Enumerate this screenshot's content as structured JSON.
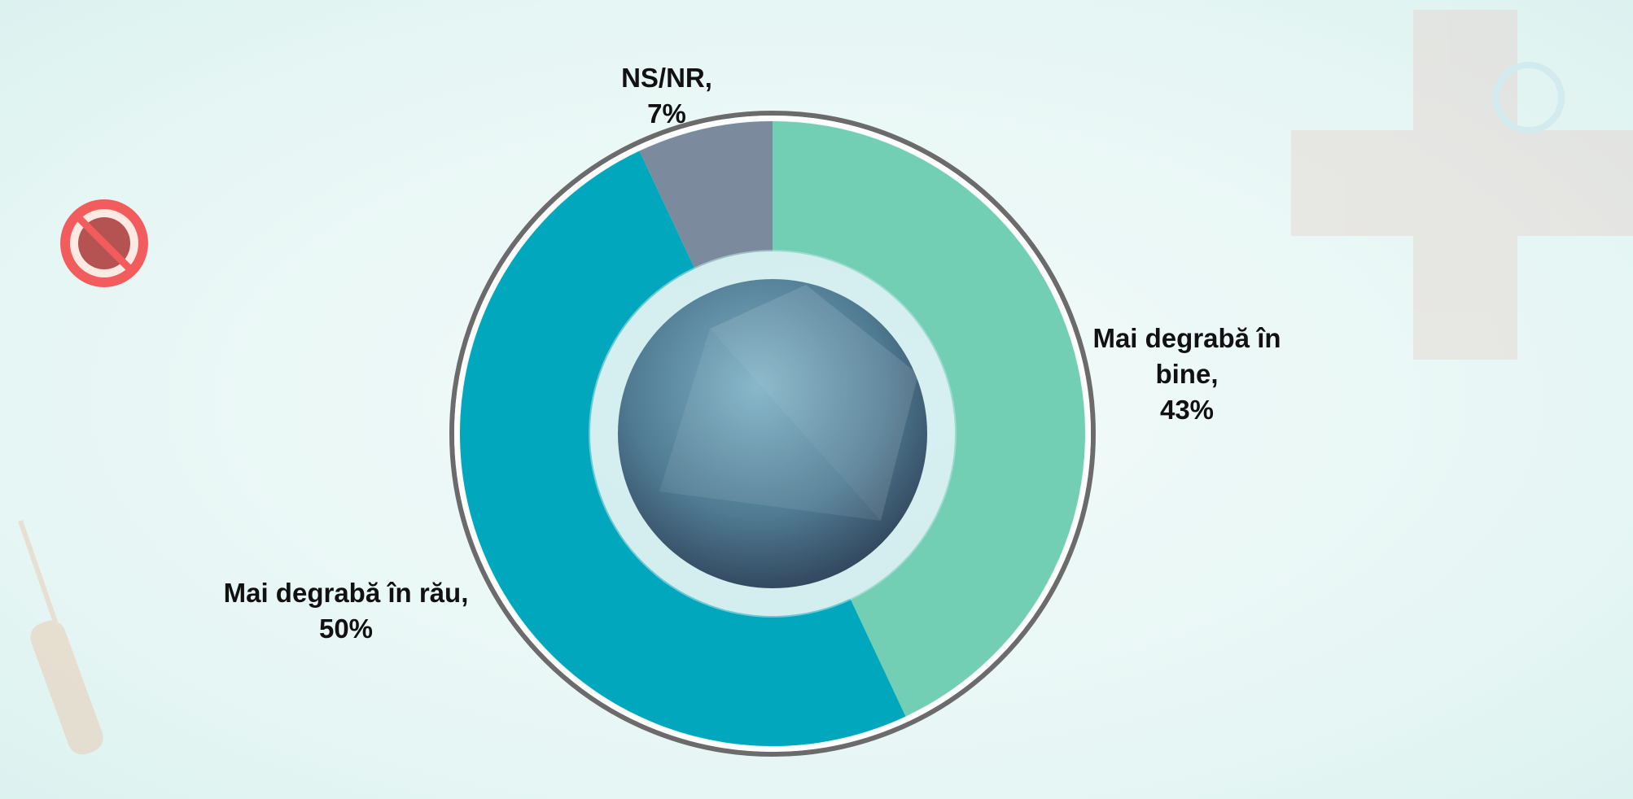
{
  "chart_data": {
    "type": "donut",
    "categories": [
      "Mai degrabă în bine,",
      "Mai degrabă în rău,",
      "NS/NR,"
    ],
    "values": [
      43,
      50,
      7
    ],
    "value_labels": [
      "43%",
      "50%",
      "7%"
    ],
    "colors": [
      "#72cfb4",
      "#00a7bd",
      "#7b8a9c"
    ]
  }
}
